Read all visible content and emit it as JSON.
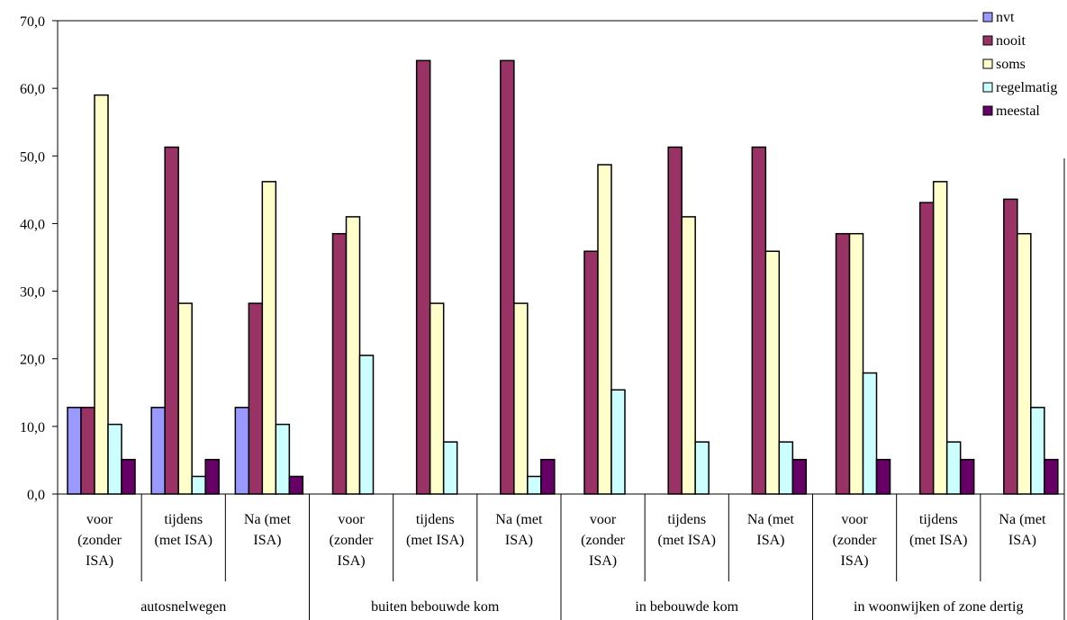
{
  "chart_data": {
    "type": "bar",
    "title": "",
    "xlabel": "",
    "ylabel": "",
    "ylim": [
      0,
      70
    ],
    "yticks": [
      "0,0",
      "10,0",
      "20,0",
      "30,0",
      "40,0",
      "50,0",
      "60,0",
      "70,0"
    ],
    "grid": false,
    "legend_position": "top-right",
    "groups": [
      {
        "label": "autosnelwegen",
        "categories": [
          [
            "voor",
            "(zonder",
            "ISA)"
          ],
          [
            "tijdens",
            "(met ISA)"
          ],
          [
            "Na (met",
            "ISA)"
          ]
        ]
      },
      {
        "label": "buiten bebouwde kom",
        "categories": [
          [
            "voor",
            "(zonder",
            "ISA)"
          ],
          [
            "tijdens",
            "(met ISA)"
          ],
          [
            "Na (met",
            "ISA)"
          ]
        ]
      },
      {
        "label": "in bebouwde kom",
        "categories": [
          [
            "voor",
            "(zonder",
            "ISA)"
          ],
          [
            "tijdens",
            "(met ISA)"
          ],
          [
            "Na (met",
            "ISA)"
          ]
        ]
      },
      {
        "label": "in woonwijken of zone dertig",
        "categories": [
          [
            "voor",
            "(zonder",
            "ISA)"
          ],
          [
            "tijdens",
            "(met ISA)"
          ],
          [
            "Na (met",
            "ISA)"
          ]
        ]
      }
    ],
    "series": [
      {
        "name": "nvt",
        "color": "#9999ff",
        "values": [
          12.8,
          12.8,
          12.8,
          0,
          0,
          0,
          0,
          0,
          0,
          0,
          0,
          0
        ]
      },
      {
        "name": "nooit",
        "color": "#993366",
        "values": [
          12.8,
          51.3,
          28.2,
          38.5,
          64.1,
          64.1,
          35.9,
          51.3,
          51.3,
          38.5,
          43.1,
          43.6
        ]
      },
      {
        "name": "soms",
        "color": "#ffffcc",
        "values": [
          59.0,
          28.2,
          46.2,
          41.0,
          28.2,
          28.2,
          48.7,
          41.0,
          35.9,
          38.5,
          46.2,
          38.5
        ]
      },
      {
        "name": "regelmatig",
        "color": "#ccffff",
        "values": [
          10.3,
          2.6,
          10.3,
          20.5,
          7.7,
          2.6,
          15.4,
          7.7,
          7.7,
          17.9,
          7.7,
          12.8
        ]
      },
      {
        "name": "meestal",
        "color": "#660066",
        "values": [
          5.1,
          5.1,
          2.6,
          0,
          0,
          5.1,
          0,
          0,
          5.1,
          5.1,
          5.1,
          5.1
        ]
      }
    ]
  }
}
